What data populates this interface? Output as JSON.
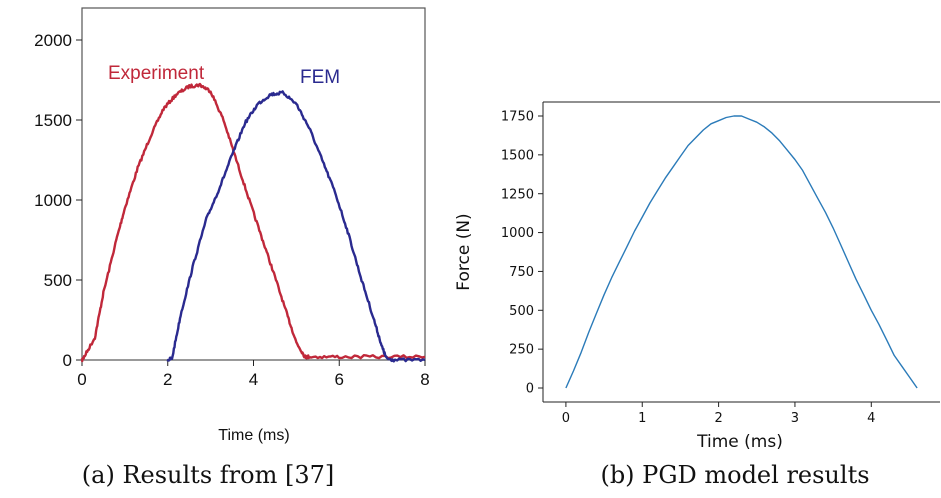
{
  "chart_data": [
    {
      "type": "line",
      "caption": "(a) Results from [37]",
      "xlabel": "Time (ms)",
      "ylabel": "",
      "xlim": [
        0,
        8
      ],
      "ylim": [
        0,
        2200
      ],
      "xticks": [
        0,
        2,
        4,
        6,
        8
      ],
      "yticks": [
        0,
        500,
        1000,
        1500,
        2000
      ],
      "grid": false,
      "legend": "inline-top",
      "series": [
        {
          "name": "Experiment",
          "color": "#c0283a",
          "x": [
            0,
            0.05,
            0.3,
            0.5,
            0.8,
            1.0,
            1.3,
            1.6,
            1.9,
            2.2,
            2.5,
            2.75,
            3.0,
            3.3,
            3.6,
            3.9,
            4.2,
            4.5,
            4.8,
            5.0,
            5.2,
            5.3,
            6.0,
            7.0,
            8.0
          ],
          "y": [
            0,
            20,
            140,
            420,
            750,
            950,
            1200,
            1400,
            1570,
            1660,
            1710,
            1720,
            1680,
            1500,
            1250,
            1000,
            760,
            520,
            270,
            110,
            20,
            20,
            20,
            20,
            20
          ]
        },
        {
          "name": "FEM",
          "color": "#2a2a8f",
          "x": [
            2.0,
            2.1,
            2.3,
            2.6,
            2.9,
            3.2,
            3.5,
            3.8,
            4.1,
            4.4,
            4.7,
            5.0,
            5.3,
            5.6,
            5.9,
            6.2,
            6.5,
            6.8,
            7.0,
            7.1,
            7.3,
            8.0
          ],
          "y": [
            0,
            10,
            280,
            600,
            880,
            1070,
            1280,
            1480,
            1600,
            1660,
            1670,
            1600,
            1450,
            1250,
            1050,
            800,
            520,
            260,
            80,
            10,
            0,
            0
          ]
        }
      ]
    },
    {
      "type": "line",
      "caption": "(b) PGD model results",
      "xlabel": "Time (ms)",
      "ylabel": "Force (N)",
      "xlim": [
        -0.3,
        4.9
      ],
      "ylim": [
        -90,
        1840
      ],
      "xticks": [
        0,
        1,
        2,
        3,
        4
      ],
      "yticks": [
        0,
        250,
        500,
        750,
        1000,
        1250,
        1500,
        1750
      ],
      "grid": false,
      "spines": "left-bottom-top",
      "series": [
        {
          "color": "#2b7bb9",
          "x": [
            0,
            0.1,
            0.2,
            0.3,
            0.4,
            0.5,
            0.6,
            0.7,
            0.8,
            0.9,
            1.0,
            1.1,
            1.2,
            1.3,
            1.4,
            1.5,
            1.6,
            1.7,
            1.8,
            1.9,
            2.0,
            2.1,
            2.2,
            2.3,
            2.4,
            2.5,
            2.6,
            2.7,
            2.8,
            2.9,
            3.0,
            3.1,
            3.2,
            3.3,
            3.4,
            3.5,
            3.6,
            3.7,
            3.8,
            3.9,
            4.0,
            4.1,
            4.2,
            4.3,
            4.4,
            4.5,
            4.6
          ],
          "y": [
            0,
            110,
            230,
            360,
            480,
            600,
            710,
            810,
            910,
            1010,
            1100,
            1190,
            1270,
            1350,
            1420,
            1490,
            1560,
            1610,
            1660,
            1700,
            1720,
            1740,
            1750,
            1750,
            1730,
            1710,
            1680,
            1640,
            1590,
            1530,
            1470,
            1400,
            1310,
            1220,
            1130,
            1030,
            920,
            810,
            700,
            600,
            500,
            410,
            310,
            210,
            140,
            70,
            0
          ]
        }
      ]
    }
  ]
}
